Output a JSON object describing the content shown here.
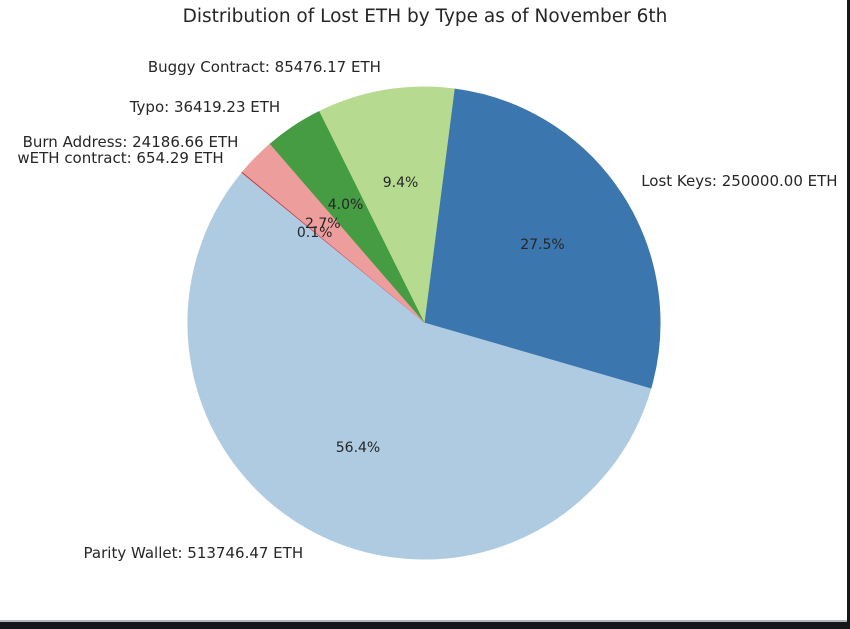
{
  "window": {
    "background": "#ffffff",
    "bottom_divider_color": "#b4b4bc",
    "bottom_bar_color": "#16171b",
    "right_border_color": "#16171b"
  },
  "chart_data": {
    "type": "pie",
    "title": "Distribution of Lost ETH by Type as of November 6th",
    "unit": "ETH",
    "start_angle_deg": -16.2,
    "direction": "counterclockwise",
    "label_distance": 1.1,
    "pct_distance": 0.6,
    "legend": "none",
    "text_color": "#262626",
    "slices": [
      {
        "name": "Lost Keys",
        "value_eth": 250000.0,
        "label_text": "Lost Keys: 250000.00 ETH",
        "pct_text": "27.5%",
        "color": "#3c76af"
      },
      {
        "name": "Buggy Contract",
        "value_eth": 85476.17,
        "label_text": "Buggy Contract: 85476.17 ETH",
        "pct_text": "9.4%",
        "color": "#b6db90"
      },
      {
        "name": "Typo",
        "value_eth": 36419.23,
        "label_text": "Typo: 36419.23 ETH",
        "pct_text": "4.0%",
        "color": "#459c43"
      },
      {
        "name": "Burn Address",
        "value_eth": 24186.66,
        "label_text": "Burn Address: 24186.66 ETH",
        "pct_text": "2.7%",
        "color": "#ec9d9c"
      },
      {
        "name": "wETH contract",
        "value_eth": 654.29,
        "label_text": "wETH contract: 654.29 ETH",
        "pct_text": "0.1%",
        "color": "#c43a3c"
      },
      {
        "name": "Parity Wallet",
        "value_eth": 513746.47,
        "label_text": "Parity Wallet: 513746.47 ETH",
        "pct_text": "56.4%",
        "color": "#aecbe2"
      }
    ]
  }
}
